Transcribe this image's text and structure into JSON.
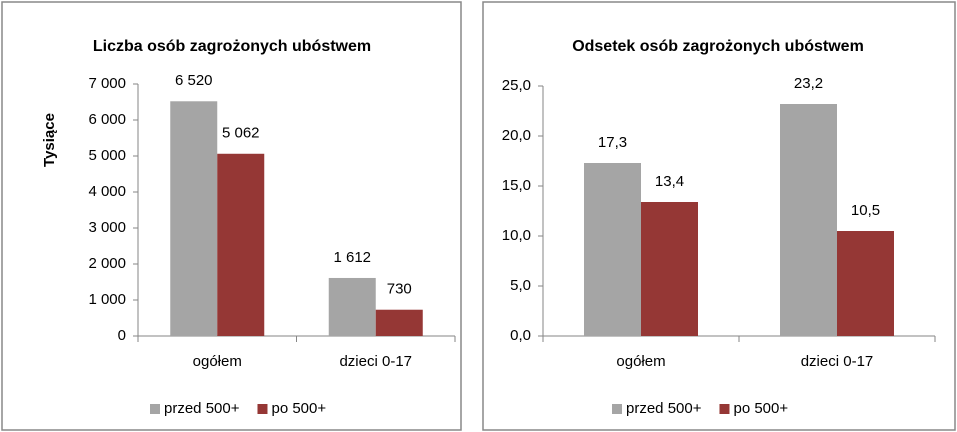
{
  "chart_data": [
    {
      "type": "bar",
      "title": "Liczba osób zagrożonych ubóstwem",
      "y_label": "Tysiące",
      "categories": [
        "ogółem",
        "dzieci 0-17"
      ],
      "series": [
        {
          "name": "przed 500+",
          "color": "#a5a5a5",
          "values": [
            6520,
            1612
          ],
          "value_labels": [
            "6 520",
            "1 612"
          ]
        },
        {
          "name": "po 500+",
          "color": "#953735",
          "values": [
            5062,
            730
          ],
          "value_labels": [
            "5 062",
            "730"
          ]
        }
      ],
      "ylim": [
        0,
        7000
      ],
      "yticks": [
        0,
        {
          "value": 1000,
          "label": "1 000"
        },
        {
          "value": 2000,
          "label": "2 000"
        },
        {
          "value": 3000,
          "label": "3 000"
        },
        {
          "value": 4000,
          "label": "4 000"
        },
        {
          "value": 5000,
          "label": "5 000"
        },
        {
          "value": 6000,
          "label": "6 000"
        },
        {
          "value": 7000,
          "label": "7 000"
        }
      ],
      "legend": "bottom"
    },
    {
      "type": "bar",
      "title": "Odsetek osób zagrożonych ubóstwem",
      "categories": [
        "ogółem",
        "dzieci 0-17"
      ],
      "series": [
        {
          "name": "przed 500+",
          "color": "#a5a5a5",
          "values": [
            17.3,
            23.2
          ],
          "value_labels": [
            "17,3",
            "23,2"
          ]
        },
        {
          "name": "po 500+",
          "color": "#953735",
          "values": [
            13.4,
            10.5
          ],
          "value_labels": [
            "13,4",
            "10,5"
          ]
        }
      ],
      "ylim": [
        0,
        25
      ],
      "yticks": [
        {
          "value": 0,
          "label": "0,0"
        },
        {
          "value": 5,
          "label": "5,0"
        },
        {
          "value": 10,
          "label": "10,0"
        },
        {
          "value": 15,
          "label": "15,0"
        },
        {
          "value": 20,
          "label": "20,0"
        },
        {
          "value": 25,
          "label": "25,0"
        }
      ],
      "legend": "bottom"
    }
  ]
}
